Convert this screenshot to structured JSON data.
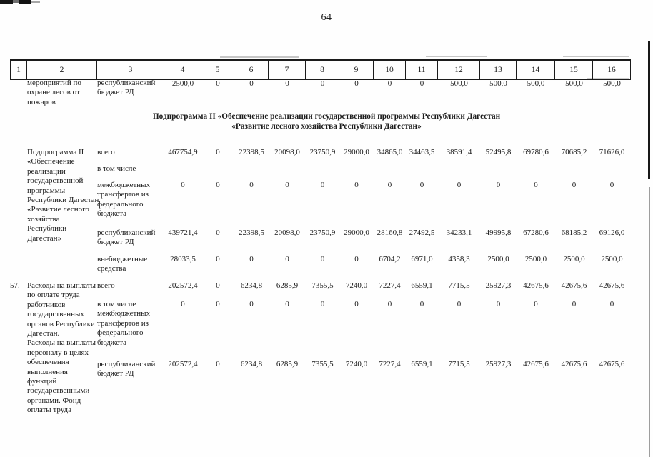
{
  "page_number": "64",
  "header_columns": [
    "1",
    "2",
    "3",
    "4",
    "5",
    "6",
    "7",
    "8",
    "9",
    "10",
    "11",
    "12",
    "13",
    "14",
    "15",
    "16"
  ],
  "carryover_row": {
    "activity": "мероприятий по\nохране лесов от\nпожаров",
    "source": "республиканский\nбюджет РД",
    "values": [
      "2500,0",
      "0",
      "0",
      "0",
      "0",
      "0",
      "0",
      "0",
      "500,0",
      "500,0",
      "500,0",
      "500,0",
      "500,0"
    ]
  },
  "section_heading": {
    "line1": "Подпрограмма II «Обеспечение реализации государственной программы Республики Дагестан",
    "line2": "«Развитие лесного хозяйства Республики Дагестан»"
  },
  "subprogram_block": {
    "title": "Подпрограмма II\n«Обеспечение\nреализации\nгосударственной\nпрограммы\nРеспублики Дагестан\n«Развитие лесного\nхозяйства\nРеспублики\nДагестан»",
    "rows": [
      {
        "source": "всего",
        "values": [
          "467754,9",
          "0",
          "22398,5",
          "20098,0",
          "23750,9",
          "29000,0",
          "34865,0",
          "34463,5",
          "38591,4",
          "52495,8",
          "69780,6",
          "70685,2",
          "71626,0"
        ]
      },
      {
        "source": "в том числе",
        "values": []
      },
      {
        "source": "межбюджетных\nтрансфертов из\nфедерального\nбюджета",
        "values": [
          "0",
          "0",
          "0",
          "0",
          "0",
          "0",
          "0",
          "0",
          "0",
          "0",
          "0",
          "0",
          "0"
        ]
      },
      {
        "source": "республиканский\nбюджет РД",
        "values": [
          "439721,4",
          "0",
          "22398,5",
          "20098,0",
          "23750,9",
          "29000,0",
          "28160,8",
          "27492,5",
          "34233,1",
          "49995,8",
          "67280,6",
          "68185,2",
          "69126,0"
        ]
      },
      {
        "source": "внебюджетные\nсредства",
        "values": [
          "28033,5",
          "0",
          "0",
          "0",
          "0",
          "0",
          "6704,2",
          "6971,0",
          "4358,3",
          "2500,0",
          "2500,0",
          "2500,0",
          "2500,0"
        ]
      }
    ]
  },
  "row57": {
    "number": "57.",
    "activity": "Расходы на выплаты\nпо оплате труда\nработников\nгосударственных\nорганов Республики\nДагестан.\nРасходы на выплаты\nперсоналу в целях\nобеспечения\nвыполнения\nфункций\nгосударственными\nорганами. Фонд\nоплаты труда",
    "rows": [
      {
        "source": "всего",
        "values": [
          "202572,4",
          "0",
          "6234,8",
          "6285,9",
          "7355,5",
          "7240,0",
          "7227,4",
          "6559,1",
          "7715,5",
          "25927,3",
          "42675,6",
          "42675,6",
          "42675,6"
        ]
      },
      {
        "source": "в том числе\nмежбюджетных\nтрансфертов из\nфедерального\nбюджета",
        "values": [
          "0",
          "0",
          "0",
          "0",
          "0",
          "0",
          "0",
          "0",
          "0",
          "0",
          "0",
          "0",
          "0"
        ]
      },
      {
        "source": "республиканский\nбюджет РД",
        "values": [
          "202572,4",
          "0",
          "6234,8",
          "6285,9",
          "7355,5",
          "7240,0",
          "7227,4",
          "6559,1",
          "7715,5",
          "25927,3",
          "42675,6",
          "42675,6",
          "42675,6"
        ]
      }
    ]
  }
}
